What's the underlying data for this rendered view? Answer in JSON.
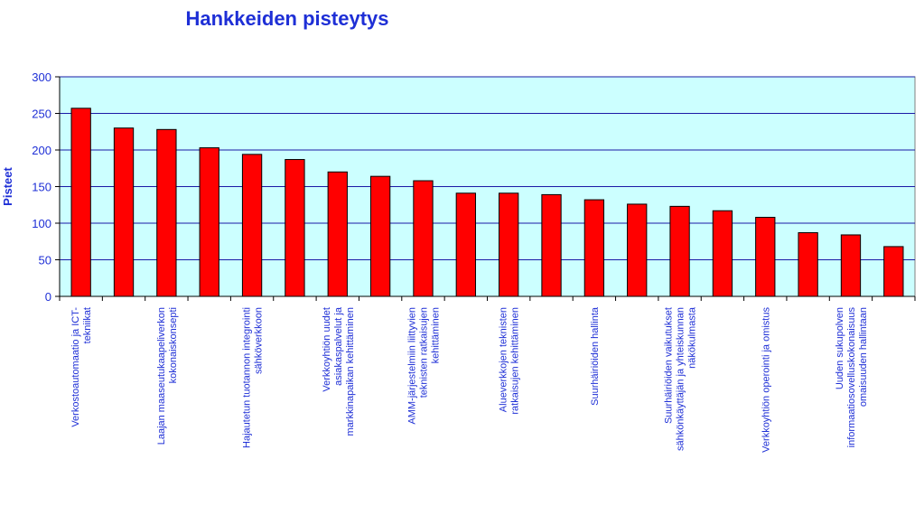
{
  "chart_data": {
    "type": "bar",
    "title": "Hankkeiden pisteytys",
    "xlabel": "",
    "ylabel": "Pisteet",
    "ylim": [
      0,
      300
    ],
    "yticks": [
      0,
      50,
      100,
      150,
      200,
      250,
      300
    ],
    "grid": true,
    "legend": "none",
    "colors": {
      "bar_fill": "#ff0000",
      "bar_stroke": "#000000",
      "plot_background": "#ccffff",
      "gridline": "#1a1aa6",
      "text": "#1e2fd6"
    },
    "categories": [
      [
        "Verkostoautomaatio ja ICT-",
        "tekniikat"
      ],
      [],
      [
        "Laajan maaseutukaapeliverkon",
        "kokonaiskonsepti"
      ],
      [],
      [
        "Hajautetun tuotannon integrointi",
        "sähköverkkoon"
      ],
      [],
      [
        "Verkkoyhtiön uudet",
        "asiakaspalvelut ja",
        "markkinapaikan kehittäminen"
      ],
      [],
      [
        "AMM-järjestelmiin liittyvien",
        "teknisten ratkaisujen",
        "kehittäminen"
      ],
      [],
      [
        "Alueverkkojen teknisten",
        "ratkaisujen kehittäminen"
      ],
      [],
      [
        "Suurhäiriöiden hallinta"
      ],
      [],
      [
        "Suurhäiriöiden vaikutukset",
        "sähkönkäyttäjän ja yhteiskunnan",
        "näkökulmasta"
      ],
      [],
      [
        "Verkkoyhtiön operointi ja omistus"
      ],
      [],
      [
        "Uuden sukupolven",
        "informaatiosovelluskokonaisuus",
        "omaisuuden hallintaan"
      ],
      []
    ],
    "values": [
      257,
      230,
      228,
      203,
      194,
      187,
      170,
      164,
      158,
      141,
      141,
      139,
      132,
      126,
      123,
      117,
      108,
      87,
      84,
      68
    ]
  }
}
